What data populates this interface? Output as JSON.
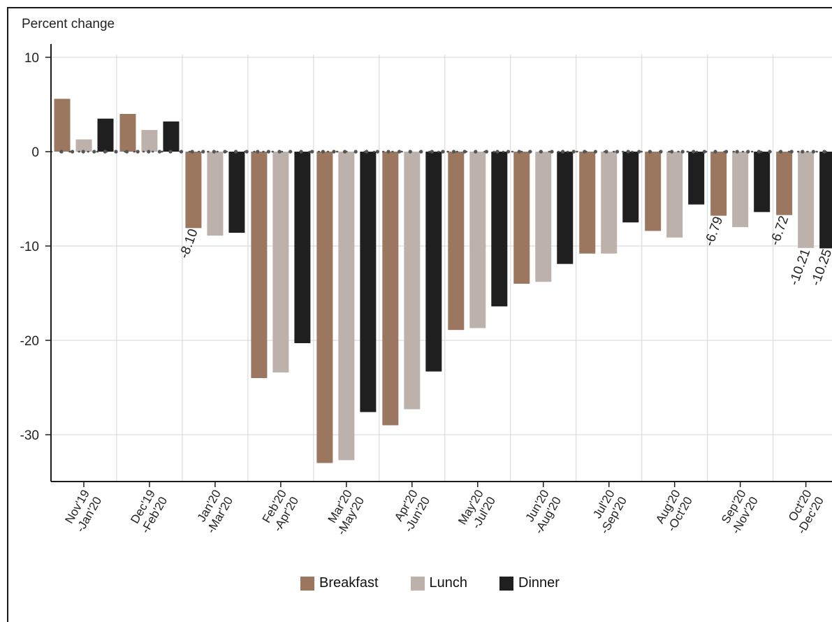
{
  "colors": {
    "breakfast": "#9c7760",
    "lunch": "#bdb1ab",
    "dinner": "#1f1f1f",
    "grid": "#d4d4d4",
    "axis": "#1a1a1a",
    "zero_dot": "#555555"
  },
  "chart_data": {
    "type": "bar",
    "title": "",
    "ylabel": "Percent change",
    "xlabel": "",
    "ylim": [
      -35,
      12
    ],
    "yticks": [
      10,
      0,
      -10,
      -20,
      -30
    ],
    "grid": true,
    "legend_position": "bottom-center",
    "categories": [
      "Nov'19 -Jan'20",
      "Dec'19 -Feb'20",
      "Jan'20 -Mar'20",
      "Feb'20 -Apr'20",
      "Mar'20 -May'20",
      "Apr'20 -Jun'20",
      "May'20 -Jul'20",
      "Jun'20 -Aug'20",
      "Jul'20 -Sep'20",
      "Aug'20 -Oct'20",
      "Sep'20 -Nov'20",
      "Oct'20 -Dec'20"
    ],
    "category_lines": [
      [
        "Nov'19",
        "-Jan'20"
      ],
      [
        "Dec'19",
        "-Feb'20"
      ],
      [
        "Jan'20",
        "-Mar'20"
      ],
      [
        "Feb'20",
        "-Apr'20"
      ],
      [
        "Mar'20",
        "-May'20"
      ],
      [
        "Apr'20",
        "-Jun'20"
      ],
      [
        "May'20",
        "-Jul'20"
      ],
      [
        "Jun'20",
        "-Aug'20"
      ],
      [
        "Jul'20",
        "-Sep'20"
      ],
      [
        "Aug'20",
        "-Oct'20"
      ],
      [
        "Sep'20",
        "-Nov'20"
      ],
      [
        "Oct'20",
        "-Dec'20"
      ]
    ],
    "series": [
      {
        "name": "Breakfast",
        "color_key": "breakfast",
        "values": [
          5.6,
          4.0,
          -8.1,
          -24.0,
          -33.0,
          -29.0,
          -18.9,
          -14.0,
          -10.8,
          -8.4,
          -6.79,
          -6.72
        ]
      },
      {
        "name": "Lunch",
        "color_key": "lunch",
        "values": [
          1.3,
          2.3,
          -8.9,
          -23.4,
          -32.7,
          -27.3,
          -18.7,
          -13.8,
          -10.8,
          -9.1,
          -8.0,
          -10.21
        ]
      },
      {
        "name": "Dinner",
        "color_key": "dinner",
        "values": [
          3.5,
          3.2,
          -8.6,
          -20.3,
          -27.6,
          -23.3,
          -16.4,
          -11.9,
          -7.5,
          -5.6,
          -6.4,
          -10.25
        ]
      }
    ],
    "data_labels": [
      {
        "series": 0,
        "category": 2,
        "text": "-8.10"
      },
      {
        "series": 0,
        "category": 10,
        "text": "-6.79"
      },
      {
        "series": 0,
        "category": 11,
        "text": "-6.72"
      },
      {
        "series": 1,
        "category": 11,
        "text": "-10.21"
      },
      {
        "series": 2,
        "category": 11,
        "text": "-10.25"
      }
    ]
  }
}
